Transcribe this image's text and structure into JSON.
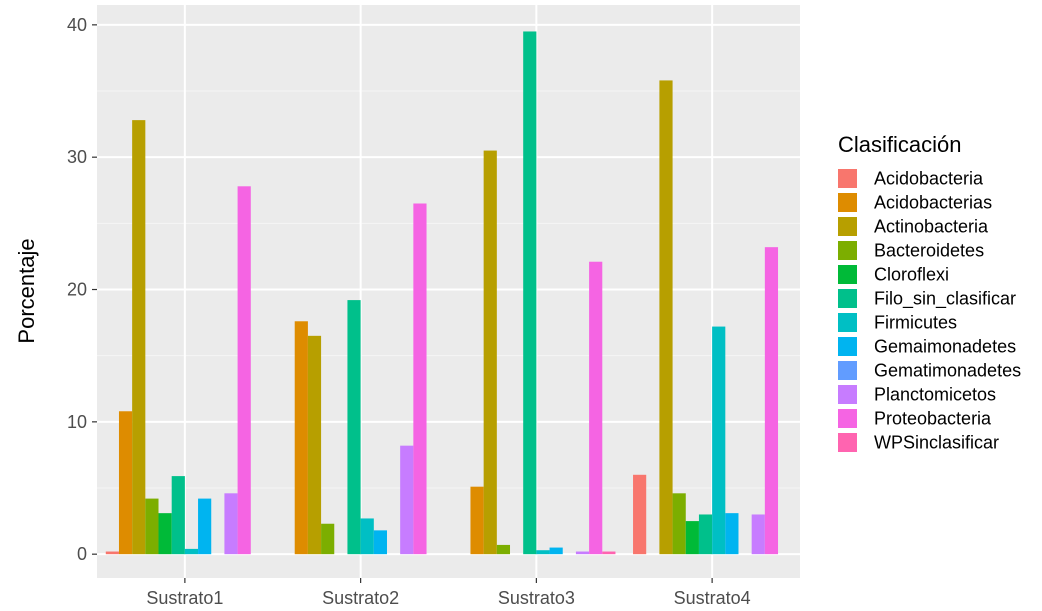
{
  "chart_data": {
    "type": "bar",
    "title": "",
    "xlabel": "",
    "ylabel": "Porcentaje",
    "ylim": [
      -1.8,
      41.5
    ],
    "yticks": [
      0,
      10,
      20,
      30,
      40
    ],
    "grid": true,
    "legend": {
      "title": "Clasificación",
      "placement": "right"
    },
    "categories": [
      "Sustrato1",
      "Sustrato2",
      "Sustrato3",
      "Sustrato4"
    ],
    "series": [
      {
        "name": "Acidobacteria",
        "color": "#F8766D",
        "values": [
          0.2,
          0,
          0,
          6.0
        ]
      },
      {
        "name": "Acidobacterias",
        "color": "#DE8C00",
        "values": [
          10.8,
          17.6,
          5.1,
          0
        ]
      },
      {
        "name": "Actinobacteria",
        "color": "#B79F00",
        "values": [
          32.8,
          16.5,
          30.5,
          35.8
        ]
      },
      {
        "name": "Bacteroidetes",
        "color": "#7CAE00",
        "values": [
          4.2,
          2.3,
          0.7,
          4.6
        ]
      },
      {
        "name": "Cloroflexi",
        "color": "#00BA38",
        "values": [
          3.1,
          0,
          0,
          2.5
        ]
      },
      {
        "name": "Filo_sin_clasificar",
        "color": "#00C08B",
        "values": [
          5.9,
          19.2,
          39.5,
          3.0
        ]
      },
      {
        "name": "Firmicutes",
        "color": "#00BFC4",
        "values": [
          0.4,
          2.7,
          0.3,
          17.2
        ]
      },
      {
        "name": "Gemaimonadetes",
        "color": "#00B4F0",
        "values": [
          4.2,
          1.8,
          0.5,
          3.1
        ]
      },
      {
        "name": "Gematimonadetes",
        "color": "#619CFF",
        "values": [
          0,
          0,
          0,
          0
        ]
      },
      {
        "name": "Planctomicetos",
        "color": "#C77CFF",
        "values": [
          4.6,
          8.2,
          0.2,
          3.0
        ]
      },
      {
        "name": "Proteobacteria",
        "color": "#F564E3",
        "values": [
          27.8,
          26.5,
          22.1,
          23.2
        ]
      },
      {
        "name": "WPSinclasificar",
        "color": "#FF64B0",
        "values": [
          0,
          0,
          0.2,
          0
        ]
      }
    ]
  }
}
